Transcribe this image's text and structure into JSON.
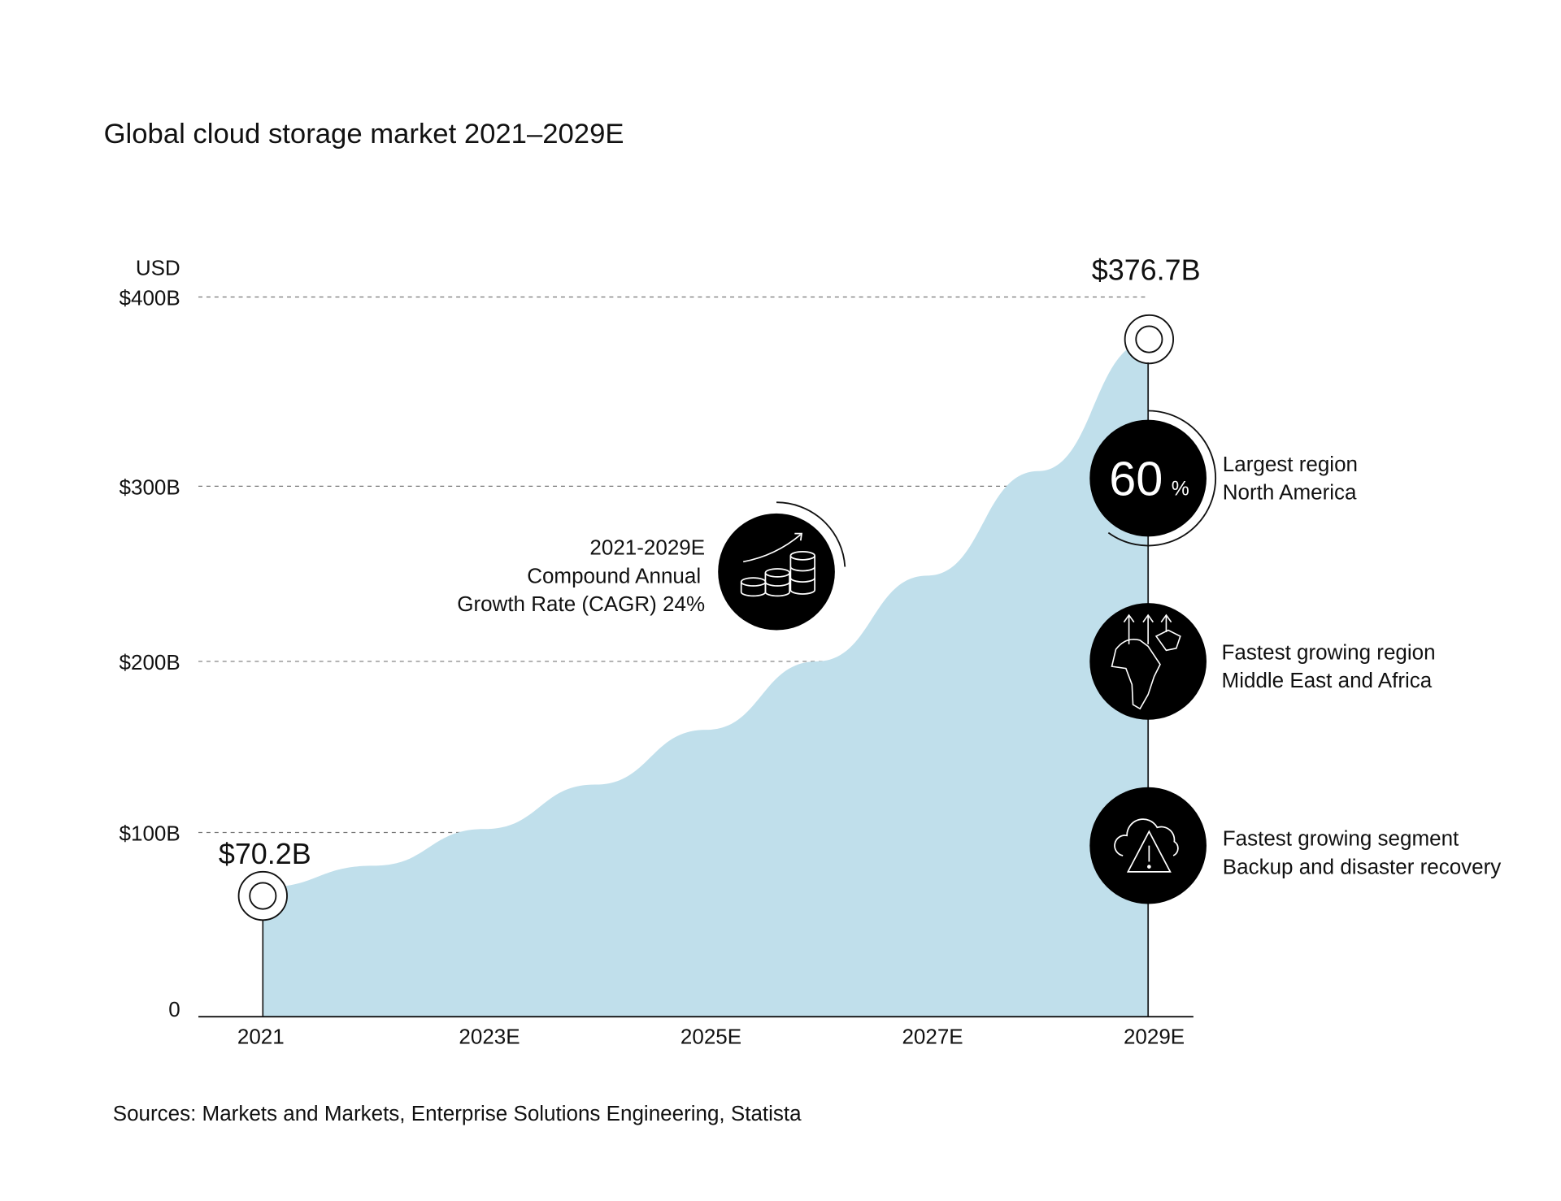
{
  "chart_data": {
    "type": "area",
    "title": "Global cloud storage market 2021–2029E",
    "ylabel": "USD",
    "ylim": [
      0,
      400
    ],
    "y_ticks": [
      "0",
      "$100B",
      "$200B",
      "$300B",
      "$400B"
    ],
    "y_tick_values": [
      0,
      100,
      200,
      300,
      400
    ],
    "x_ticks": [
      "2021",
      "2023E",
      "2025E",
      "2027E",
      "2029E"
    ],
    "x": [
      2021,
      2022,
      2023,
      2024,
      2025,
      2026,
      2027,
      2028,
      2029
    ],
    "values": [
      70.2,
      82,
      102,
      128,
      160,
      200,
      249,
      308,
      376.7
    ],
    "grid": "horizontal dashed",
    "start_label": "$70.2B",
    "end_label": "$376.7B",
    "fill_color": "#c0dfeb",
    "source": "Sources: Markets and Markets, Enterprise Solutions Engineering, Statista"
  },
  "callouts": {
    "cagr": {
      "lines": [
        "2021-2029E",
        "Compound Annual",
        "Growth Rate (CAGR) 24%"
      ],
      "icon": "coins-growth-icon"
    },
    "largest_region": {
      "big": "60",
      "unit": "%",
      "lines": [
        "Largest region",
        "North America"
      ],
      "share": 60
    },
    "fastest_region": {
      "lines": [
        "Fastest growing region",
        "Middle East and Africa"
      ],
      "icon": "africa-map-arrows-icon"
    },
    "fastest_segment": {
      "lines": [
        "Fastest growing segment",
        "Backup and disaster recovery"
      ],
      "icon": "cloud-warning-icon"
    }
  }
}
